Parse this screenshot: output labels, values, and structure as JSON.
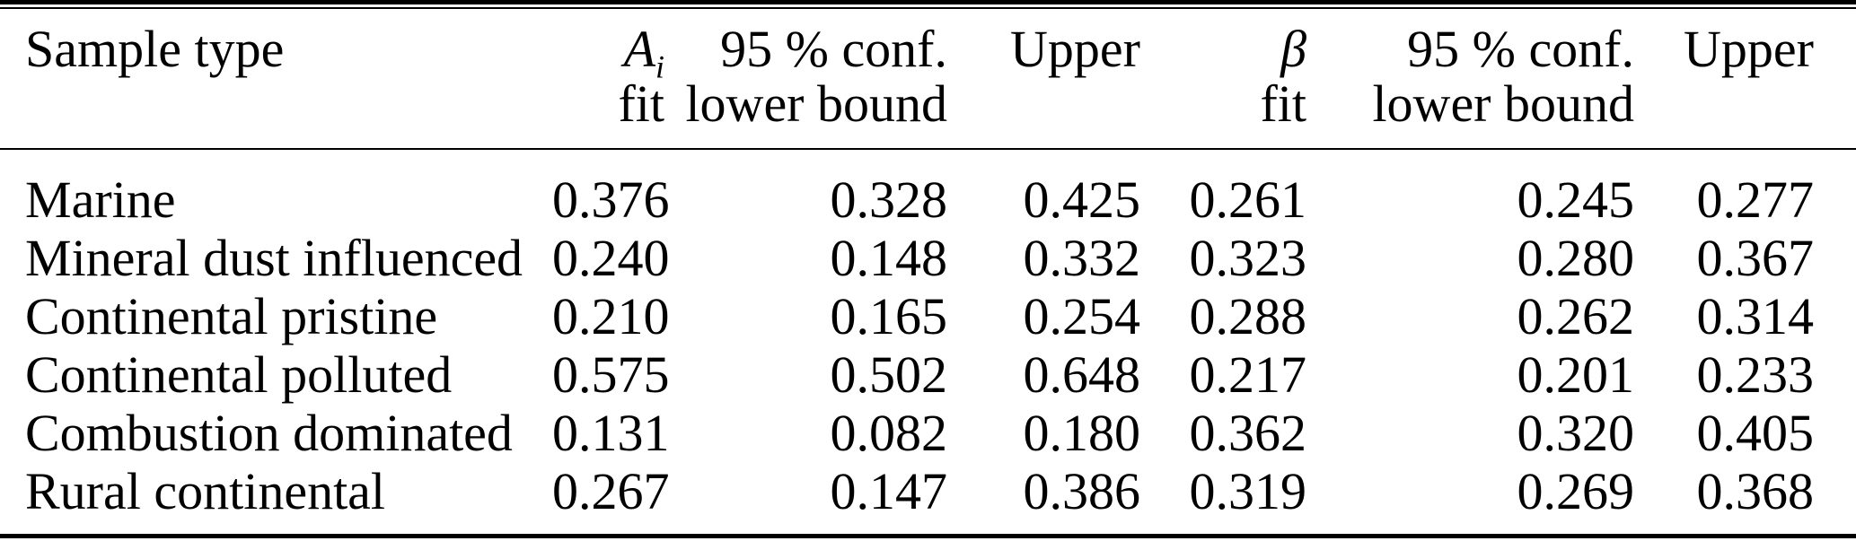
{
  "page": {
    "background_color": "#ffffff",
    "text_color": "#000000",
    "rule_color": "#000000"
  },
  "table": {
    "header": {
      "sample_type": "Sample type",
      "cols": [
        {
          "line1_symbol": "A",
          "line1_sub": "i",
          "line2": "fit"
        },
        {
          "line1": "95 % conf.",
          "line2": "lower bound"
        },
        {
          "line1": "Upper",
          "line2": ""
        },
        {
          "line1_symbol": "β",
          "line1_sub": "",
          "line2": "fit"
        },
        {
          "line1": "95 % conf.",
          "line2": "lower bound"
        },
        {
          "line1": "Upper",
          "line2": ""
        }
      ]
    },
    "rows": [
      {
        "sample_type": "Marine",
        "values": [
          "0.376",
          "0.328",
          "0.425",
          "0.261",
          "0.245",
          "0.277"
        ]
      },
      {
        "sample_type": "Mineral dust influenced",
        "values": [
          "0.240",
          "0.148",
          "0.332",
          "0.323",
          "0.280",
          "0.367"
        ]
      },
      {
        "sample_type": "Continental pristine",
        "values": [
          "0.210",
          "0.165",
          "0.254",
          "0.288",
          "0.262",
          "0.314"
        ]
      },
      {
        "sample_type": "Continental polluted",
        "values": [
          "0.575",
          "0.502",
          "0.648",
          "0.217",
          "0.201",
          "0.233"
        ]
      },
      {
        "sample_type": "Combustion dominated",
        "values": [
          "0.131",
          "0.082",
          "0.180",
          "0.362",
          "0.320",
          "0.405"
        ]
      },
      {
        "sample_type": "Rural continental",
        "values": [
          "0.267",
          "0.147",
          "0.386",
          "0.319",
          "0.269",
          "0.368"
        ]
      }
    ]
  }
}
